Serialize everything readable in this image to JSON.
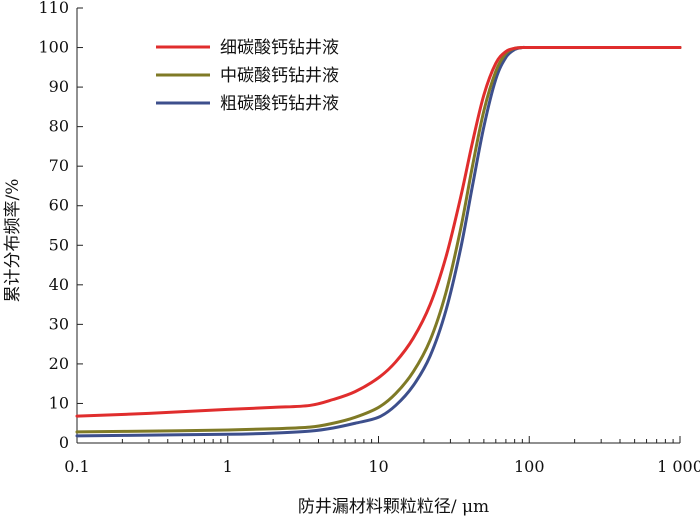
{
  "chart_data": {
    "type": "line",
    "title": "",
    "xlabel": "防井漏材料颗粒粒径/ μm",
    "ylabel": "累计分布频率/%",
    "x_scale": "log",
    "xlim": [
      0.1,
      1000
    ],
    "ylim": [
      0,
      110
    ],
    "x_ticks": [
      0.1,
      1,
      10,
      100,
      1000
    ],
    "x_tick_labels": [
      "0.1",
      "1",
      "10",
      "100",
      "1 000"
    ],
    "y_ticks": [
      0,
      10,
      20,
      30,
      40,
      50,
      60,
      70,
      80,
      90,
      100,
      110
    ],
    "y_tick_labels": [
      "0",
      "10",
      "20",
      "30",
      "40",
      "50",
      "60",
      "70",
      "80",
      "90",
      "100",
      "110"
    ],
    "grid": false,
    "legend_position": "top-left",
    "series": [
      {
        "name": "细碳酸钙钻井液",
        "color": "#e02d2d",
        "x": [
          0.1,
          0.3,
          1,
          2,
          3.5,
          5,
          7,
          10,
          13,
          17,
          22,
          28,
          35,
          42,
          50,
          60,
          70,
          80,
          90,
          100,
          200,
          500,
          1000
        ],
        "y": [
          6.8,
          7.5,
          8.5,
          9.0,
          9.5,
          11.0,
          13.0,
          16.5,
          20.5,
          26.5,
          35.0,
          47.0,
          62.0,
          76.0,
          88.0,
          96.0,
          99.0,
          99.8,
          100,
          100,
          100,
          100,
          100
        ]
      },
      {
        "name": "中碳酸钙钻井液",
        "color": "#7f7a26",
        "x": [
          0.1,
          0.3,
          1,
          2,
          3.5,
          5,
          7,
          10,
          13,
          17,
          22,
          28,
          35,
          42,
          50,
          60,
          70,
          80,
          90,
          100,
          200,
          500,
          1000
        ],
        "y": [
          2.8,
          3.0,
          3.3,
          3.6,
          4.0,
          5.0,
          6.5,
          9.0,
          12.5,
          18.0,
          26.0,
          38.0,
          54.0,
          70.0,
          84.0,
          94.0,
          98.5,
          99.8,
          100,
          100,
          100,
          100,
          100
        ]
      },
      {
        "name": "粗碳酸钙钻井液",
        "color": "#3d4f8c",
        "x": [
          0.1,
          0.3,
          1,
          2,
          3.5,
          5,
          7,
          10,
          13,
          17,
          22,
          28,
          35,
          42,
          50,
          60,
          70,
          80,
          90,
          100,
          200,
          500,
          1000
        ],
        "y": [
          1.8,
          2.0,
          2.2,
          2.5,
          3.0,
          3.8,
          5.0,
          6.5,
          9.5,
          14.5,
          22.0,
          33.5,
          49.0,
          65.0,
          80.0,
          92.0,
          97.5,
          99.5,
          100,
          100,
          100,
          100,
          100
        ]
      }
    ]
  }
}
